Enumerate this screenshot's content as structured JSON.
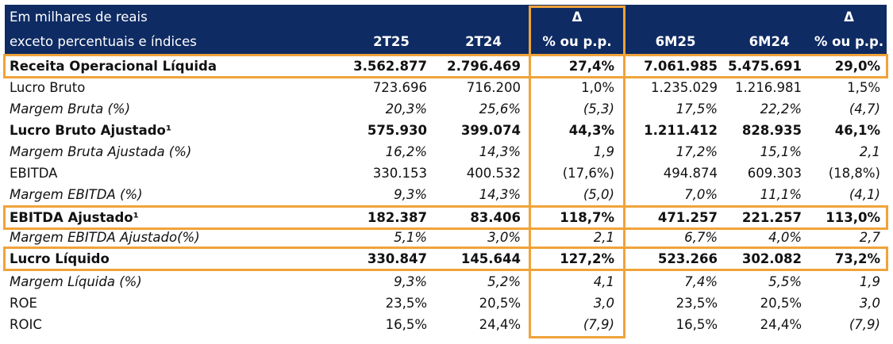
{
  "header": {
    "row1_label": "Em milhares de reais",
    "row2_label": "exceto percentuais e índices",
    "delta_symbol_1": "Δ",
    "delta_symbol_2": "Δ",
    "col_2t25": "2T25",
    "col_2t24": "2T24",
    "col_var_q": "% ou p.p.",
    "col_6m25": "6M25",
    "col_6m24": "6M24",
    "col_var_s": "% ou p.p."
  },
  "rows": [
    {
      "label": "Receita Operacional Líquida",
      "v": [
        "3.562.877",
        "2.796.469",
        "27,4%",
        "7.061.985",
        "5.475.691",
        "29,0%"
      ]
    },
    {
      "label": "Lucro Bruto",
      "v": [
        "723.696",
        "716.200",
        "1,0%",
        "1.235.029",
        "1.216.981",
        "1,5%"
      ]
    },
    {
      "label": "Margem Bruta (%)",
      "v": [
        "20,3%",
        "25,6%",
        "(5,3)",
        "17,5%",
        "22,2%",
        "(4,7)"
      ]
    },
    {
      "label": "Lucro Bruto Ajustado¹",
      "v": [
        "575.930",
        "399.074",
        "44,3%",
        "1.211.412",
        "828.935",
        "46,1%"
      ]
    },
    {
      "label": "Margem Bruta Ajustada (%)",
      "v": [
        "16,2%",
        "14,3%",
        "1,9",
        "17,2%",
        "15,1%",
        "2,1"
      ]
    },
    {
      "label": "EBITDA",
      "v": [
        "330.153",
        "400.532",
        "(17,6%)",
        "494.874",
        "609.303",
        "(18,8%)"
      ]
    },
    {
      "label": "Margem EBITDA (%)",
      "v": [
        "9,3%",
        "14,3%",
        "(5,0)",
        "7,0%",
        "11,1%",
        "(4,1)"
      ]
    },
    {
      "label": "EBITDA Ajustado¹",
      "v": [
        "182.387",
        "83.406",
        "118,7%",
        "471.257",
        "221.257",
        "113,0%"
      ]
    },
    {
      "label": "Margem EBITDA Ajustado(%)",
      "v": [
        "5,1%",
        "3,0%",
        "2,1",
        "6,7%",
        "4,0%",
        "2,7"
      ]
    },
    {
      "label": "Lucro Líquido",
      "v": [
        "330.847",
        "145.644",
        "127,2%",
        "523.266",
        "302.082",
        "73,2%"
      ]
    },
    {
      "label": "Margem Líquida (%)",
      "v": [
        "9,3%",
        "5,2%",
        "4,1",
        "7,4%",
        "5,5%",
        "1,9"
      ]
    },
    {
      "label": "ROE",
      "v": [
        "23,5%",
        "20,5%",
        "3,0",
        "23,5%",
        "20,5%",
        "3,0"
      ]
    },
    {
      "label": "ROIC",
      "v": [
        "16,5%",
        "24,4%",
        "(7,9)",
        "16,5%",
        "24,4%",
        "(7,9)"
      ]
    }
  ],
  "colors": {
    "header_bg": "#0e2b63",
    "highlight_border": "#f0a33a"
  }
}
